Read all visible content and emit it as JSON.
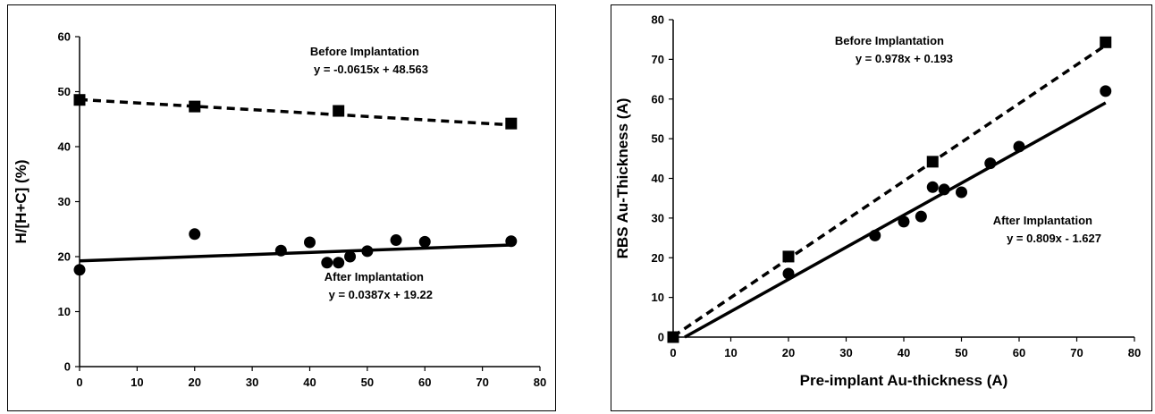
{
  "chart_data": [
    {
      "type": "scatter",
      "title": "",
      "xlabel": "",
      "ylabel": "H/[H+C] (%)",
      "xlim": [
        0,
        80
      ],
      "ylim": [
        0,
        60
      ],
      "xticks": [
        0,
        10,
        20,
        30,
        40,
        50,
        60,
        70,
        80
      ],
      "yticks": [
        0,
        10,
        20,
        30,
        40,
        50,
        60
      ],
      "grid": false,
      "series": [
        {
          "name": "Before Implantation",
          "marker": "square",
          "line": "dashed",
          "equation": "y = -0.0615x + 48.563",
          "x": [
            0,
            20,
            45,
            75
          ],
          "y": [
            48.5,
            47.3,
            46.5,
            44.2
          ]
        },
        {
          "name": "After Implantation",
          "marker": "circle",
          "line": "solid",
          "equation": "y = 0.0387x + 19.22",
          "x": [
            0,
            20,
            35,
            40,
            43,
            45,
            47,
            50,
            55,
            60,
            75
          ],
          "y": [
            17.6,
            24.1,
            21.1,
            22.6,
            18.9,
            18.9,
            20.0,
            21.0,
            23.0,
            22.7,
            22.8
          ]
        }
      ]
    },
    {
      "type": "scatter",
      "title": "",
      "xlabel": "Pre-implant Au-thickness (A)",
      "ylabel": "RBS Au-Thickness (A)",
      "xlim": [
        0,
        80
      ],
      "ylim": [
        0,
        80
      ],
      "xticks": [
        0,
        10,
        20,
        30,
        40,
        50,
        60,
        70,
        80
      ],
      "yticks": [
        0,
        10,
        20,
        30,
        40,
        50,
        60,
        70,
        80
      ],
      "grid": false,
      "series": [
        {
          "name": "Before Implantation",
          "marker": "square",
          "line": "dashed",
          "equation": "y = 0.978x + 0.193",
          "x": [
            0,
            20,
            45,
            75
          ],
          "y": [
            0,
            20.3,
            44.2,
            74.3
          ]
        },
        {
          "name": "After Implantation",
          "marker": "circle",
          "line": "solid",
          "equation": "y = 0.809x - 1.627",
          "x": [
            20,
            35,
            40,
            43,
            45,
            47,
            50,
            55,
            60,
            75
          ],
          "y": [
            16.0,
            25.6,
            29.1,
            30.4,
            37.8,
            37.2,
            36.5,
            43.8,
            48.0,
            62.0
          ]
        }
      ]
    }
  ]
}
